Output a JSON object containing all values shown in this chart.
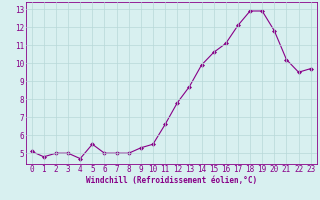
{
  "x": [
    0,
    1,
    2,
    3,
    4,
    5,
    6,
    7,
    8,
    9,
    10,
    11,
    12,
    13,
    14,
    15,
    16,
    17,
    18,
    19,
    20,
    21,
    22,
    23
  ],
  "y": [
    5.1,
    4.8,
    5.0,
    5.0,
    4.7,
    5.5,
    5.0,
    5.0,
    5.0,
    5.3,
    5.5,
    6.6,
    7.8,
    8.7,
    9.9,
    10.6,
    11.1,
    12.1,
    12.9,
    12.9,
    11.8,
    10.2,
    9.5,
    9.7
  ],
  "line_color": "#880088",
  "marker": "D",
  "marker_size": 2.0,
  "bg_color": "#d8f0f0",
  "grid_color": "#b8d8d8",
  "xlabel": "Windchill (Refroidissement éolien,°C)",
  "ylabel": "",
  "xlim": [
    -0.5,
    23.5
  ],
  "ylim": [
    4.4,
    13.4
  ],
  "yticks": [
    5,
    6,
    7,
    8,
    9,
    10,
    11,
    12,
    13
  ],
  "xticks": [
    0,
    1,
    2,
    3,
    4,
    5,
    6,
    7,
    8,
    9,
    10,
    11,
    12,
    13,
    14,
    15,
    16,
    17,
    18,
    19,
    20,
    21,
    22,
    23
  ],
  "xlabel_fontsize": 5.5,
  "tick_fontsize": 5.5,
  "tick_color": "#880088",
  "axis_color": "#880088",
  "linewidth": 0.8
}
